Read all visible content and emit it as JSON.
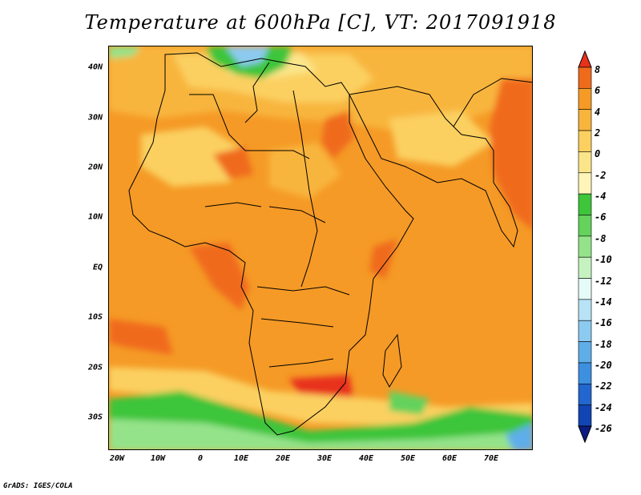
{
  "title": "Temperature at 600hPa [C], VT: 2017091918",
  "footer": "GrADS: IGES/COLA",
  "lat_labels": [
    "40N",
    "30N",
    "20N",
    "10N",
    "EQ",
    "10S",
    "20S",
    "30S"
  ],
  "lon_labels": [
    "20W",
    "10W",
    "0",
    "10E",
    "20E",
    "30E",
    "40E",
    "50E",
    "60E",
    "70E"
  ],
  "colorbar": {
    "labels": [
      "8",
      "6",
      "4",
      "2",
      "0",
      "-2",
      "-4",
      "-6",
      "-8",
      "-10",
      "-12",
      "-14",
      "-16",
      "-18",
      "-20",
      "-22",
      "-24",
      "-26"
    ],
    "colors": [
      "#e8321a",
      "#f06a1c",
      "#f59a26",
      "#f8b53c",
      "#fbd060",
      "#fbe58a",
      "#fff5b8",
      "#3ec53a",
      "#64d25c",
      "#94e38a",
      "#c6f2c0",
      "#e4fbf7",
      "#b8e2f6",
      "#8ccaf1",
      "#5eaeea",
      "#3d8fe0",
      "#2266cf",
      "#1244b4",
      "#0b1c82"
    ]
  }
}
